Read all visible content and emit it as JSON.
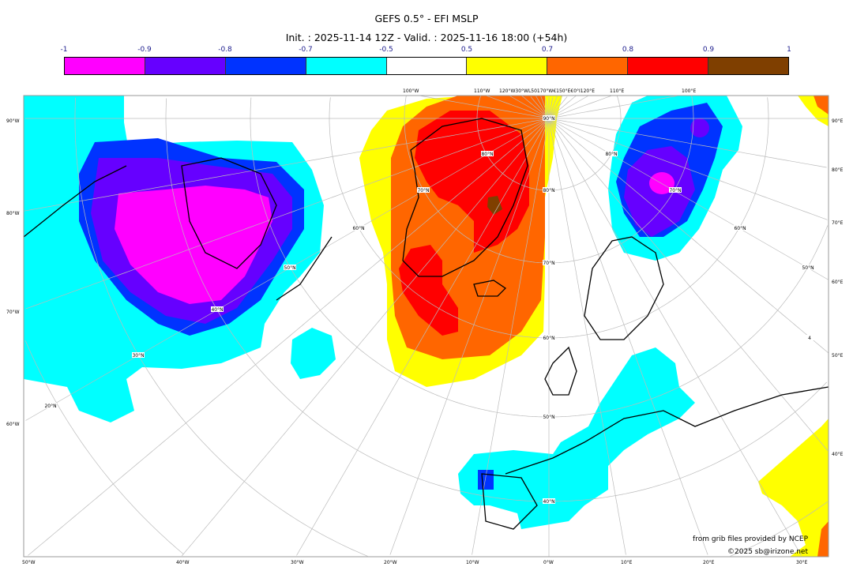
{
  "header": {
    "title": "GEFS 0.5° - EFI MSLP",
    "subtitle": "Init. : 2025-11-14 12Z - Valid. : 2025-11-16 18:00 (+54h)"
  },
  "colorbar": {
    "ticks": [
      "-1",
      "-0.9",
      "-0.8",
      "-0.7",
      "-0.5",
      "0.5",
      "0.7",
      "0.8",
      "0.9",
      "1"
    ],
    "colors": [
      "#ff00ff",
      "#6600ff",
      "#0033ff",
      "#00ffff",
      "#ffffff",
      "#ffff00",
      "#ff6600",
      "#ff0000",
      "#7f3f00"
    ]
  },
  "map": {
    "left_labels": [
      "90°W",
      "80°W",
      "70°W",
      "60°W"
    ],
    "right_labels": [
      "90°E",
      "80°E",
      "70°E",
      "60°E",
      "50°E",
      "40°E"
    ],
    "bottom_labels": [
      "50°W",
      "40°W",
      "30°W",
      "20°W",
      "10°W",
      "0°W",
      "10°E",
      "20°E",
      "30°E"
    ],
    "top_labels": [
      "100°W",
      "110°W",
      "120°W30°WL50170°W€150°E€0°I120°E",
      "110°E",
      "100°E"
    ],
    "lat_labels": [
      "90°N",
      "80°N",
      "70°N",
      "80°N",
      "60°N",
      "50°N",
      "70°N",
      "40°N",
      "60°N",
      "30°N",
      "50°N",
      "20°N",
      "40°N",
      "80°N",
      "70°N",
      "60°N",
      "50°N",
      "4"
    ],
    "credit": "from grib files provided by NCEP",
    "copyright": "©2025 sb@irizone.net"
  }
}
